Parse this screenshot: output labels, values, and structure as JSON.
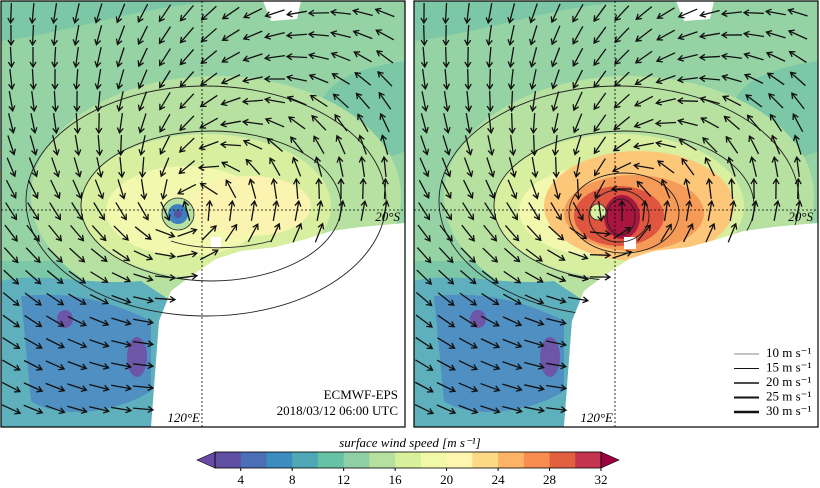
{
  "panels": [
    {
      "lat_label": "20°S",
      "lon_label": "120°E",
      "model": "ECMWF-EPS",
      "time": "2018/03/12 06:00 UTC"
    },
    {
      "lat_label": "20°S",
      "lon_label": "120°E"
    }
  ],
  "legend": {
    "entries": [
      "10 m s⁻¹",
      "15 m s⁻¹",
      "20 m s⁻¹",
      "25 m s⁻¹",
      "30 m s⁻¹"
    ]
  },
  "colorbar": {
    "label": "surface wind speed [m s⁻¹]",
    "range": [
      2,
      32
    ],
    "ticks": [
      4,
      8,
      12,
      16,
      20,
      24,
      28,
      32
    ],
    "colors": [
      "#5e4fa2",
      "#4a6fb6",
      "#3d8cbf",
      "#4ea8b6",
      "#66c2a5",
      "#8ecfa4",
      "#b5e0a0",
      "#d8ef9b",
      "#f1f9a9",
      "#fff5ae",
      "#fed985",
      "#fdb365",
      "#f88d52",
      "#e3603f",
      "#c5344f"
    ],
    "under_color": "#6a4ba3",
    "over_color": "#9e0142"
  }
}
